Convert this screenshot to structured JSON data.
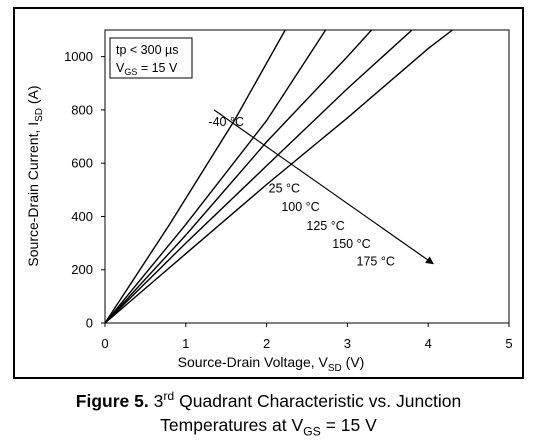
{
  "chart_data": {
    "type": "line",
    "xlabel": {
      "text": "Source-Drain Voltage, V",
      "sub": "SD",
      "unit": " (V)"
    },
    "ylabel": {
      "text": "Source-Drain Current, I",
      "sub": "SD",
      "unit": " (A)"
    },
    "xlim": [
      0,
      5
    ],
    "ylim": [
      0,
      1100
    ],
    "xticks": [
      0,
      1,
      2,
      3,
      4,
      5
    ],
    "yticks": [
      0,
      200,
      400,
      600,
      800,
      1000
    ],
    "grid": false,
    "legend_box": {
      "line1": "tp < 300 µs",
      "line2_prefix": "V",
      "line2_sub": "GS",
      "line2_suffix": " = 15 V"
    },
    "series": [
      {
        "name": "-40 °C",
        "x": [
          0,
          0.8,
          1.6,
          2.23
        ],
        "y": [
          0,
          370,
          760,
          1100
        ]
      },
      {
        "name": "25 °C",
        "x": [
          0,
          1,
          2,
          2.73
        ],
        "y": [
          0,
          370,
          760,
          1100
        ]
      },
      {
        "name": "100 °C",
        "x": [
          0,
          1,
          2,
          3,
          3.3
        ],
        "y": [
          0,
          330,
          680,
          1000,
          1100
        ]
      },
      {
        "name": "125 °C",
        "x": [
          0,
          1,
          2,
          3,
          3.8
        ],
        "y": [
          0,
          300,
          590,
          880,
          1100
        ]
      },
      {
        "name": "150 °C",
        "x": [
          0,
          1,
          2,
          3,
          4,
          4.3
        ],
        "y": [
          0,
          260,
          520,
          770,
          1030,
          1100
        ]
      }
    ],
    "trend_arrow": {
      "from": [
        1.35,
        800
      ],
      "to": [
        4.05,
        225
      ]
    },
    "annotations": [
      {
        "text": "-40 °C",
        "x": 1.5,
        "y": 740
      },
      {
        "text": "25 °C",
        "x": 2.22,
        "y": 490
      },
      {
        "text": "100 °C",
        "x": 2.42,
        "y": 420
      },
      {
        "text": "125 °C",
        "x": 2.73,
        "y": 350
      },
      {
        "text": "150 °C",
        "x": 3.05,
        "y": 282
      },
      {
        "text": "175 °C",
        "x": 3.35,
        "y": 215
      }
    ]
  },
  "caption": {
    "label": "Figure 5.",
    "text_line1_pre": " 3",
    "text_line1_sup": "rd",
    "text_line1_post": " Quadrant Characteristic vs. Junction",
    "text_line2_pre": "Temperatures at V",
    "text_line2_sub": "GS",
    "text_line2_post": " = 15 V"
  }
}
